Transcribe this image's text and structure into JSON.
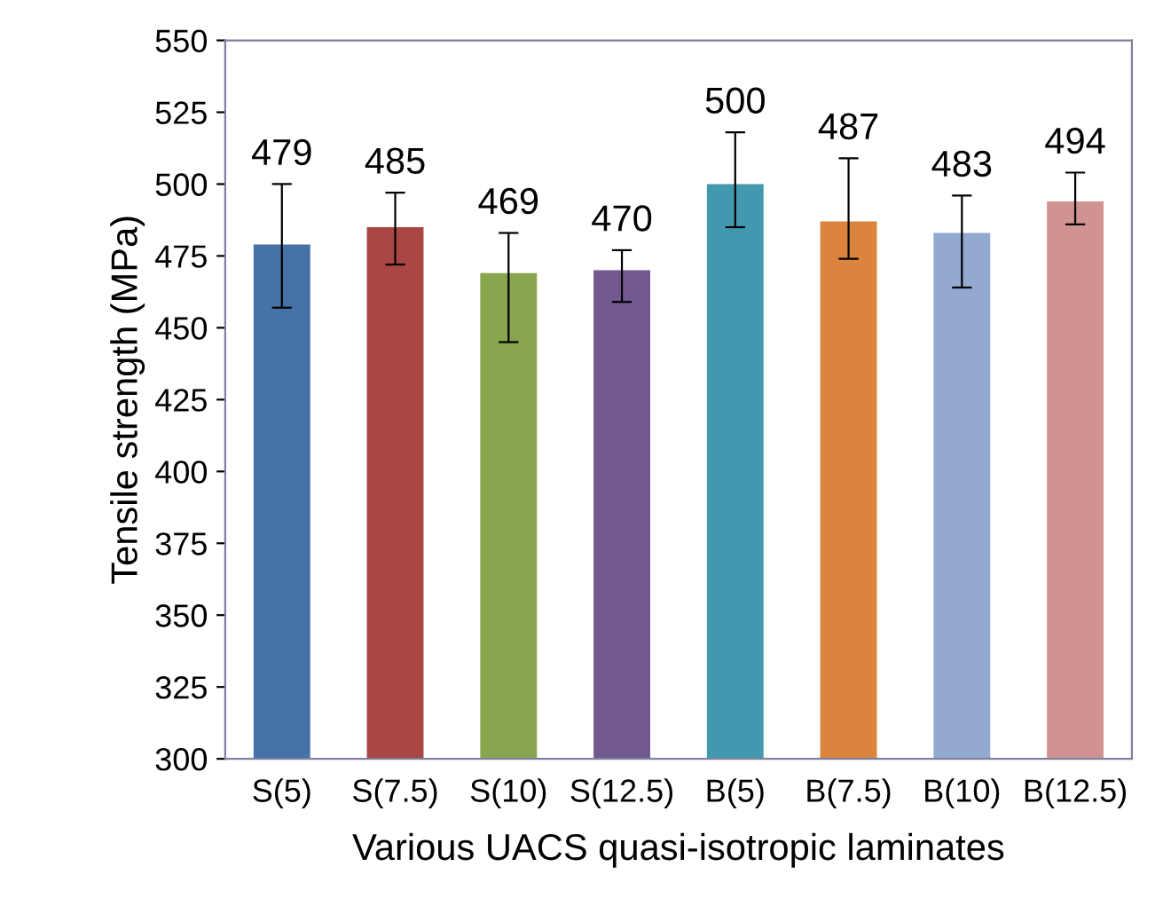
{
  "chart_data": {
    "type": "bar",
    "xlabel": "Various UACS quasi-isotropic laminates",
    "ylabel": "Tensile strength (MPa)",
    "categories": [
      "S(5)",
      "S(7.5)",
      "S(10)",
      "S(12.5)",
      "B(5)",
      "B(7.5)",
      "B(10)",
      "B(12.5)"
    ],
    "values": [
      479,
      485,
      469,
      470,
      500,
      487,
      483,
      494
    ],
    "colors": [
      "#4572a7",
      "#aa4643",
      "#89a54e",
      "#71588f",
      "#4198af",
      "#db843d",
      "#93a9cf",
      "#d19392"
    ],
    "errors": [
      [
        457,
        500
      ],
      [
        472,
        497
      ],
      [
        445,
        483
      ],
      [
        459,
        477
      ],
      [
        485,
        518
      ],
      [
        474,
        509
      ],
      [
        464,
        496
      ],
      [
        486,
        504
      ]
    ],
    "data_labels": true,
    "ylim": [
      300,
      550
    ],
    "yticks": [
      300,
      325,
      350,
      375,
      400,
      425,
      450,
      475,
      500,
      525,
      550
    ],
    "grid": false,
    "legend": false
  }
}
